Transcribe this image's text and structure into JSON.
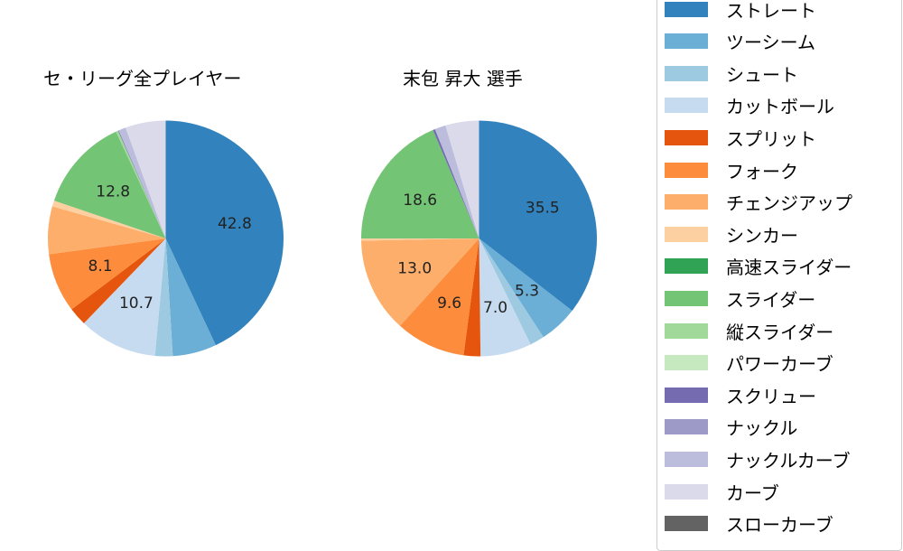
{
  "chart_data": [
    {
      "type": "pie",
      "title": "セ・リーグ全プレイヤー",
      "categories": [
        "ストレート",
        "ツーシーム",
        "シュート",
        "カットボール",
        "スプリット",
        "フォーク",
        "チェンジアップ",
        "シンカー",
        "高速スライダー",
        "スライダー",
        "縦スライダー",
        "パワーカーブ",
        "スクリュー",
        "ナックル",
        "ナックルカーブ",
        "カーブ",
        "スローカーブ"
      ],
      "values": [
        42.8,
        6.0,
        2.4,
        10.7,
        2.5,
        8.1,
        6.5,
        0.8,
        0.0,
        12.8,
        0.3,
        0.0,
        0.1,
        0.0,
        1.0,
        5.5,
        0.0
      ],
      "labels_shown": {
        "ストレート": "42.8",
        "カットボール": "10.7",
        "フォーク": "8.1",
        "スライダー": "12.8"
      },
      "start_angle": 90,
      "direction": "clockwise"
    },
    {
      "type": "pie",
      "title": "末包 昇大  選手",
      "categories": [
        "ストレート",
        "ツーシーム",
        "シュート",
        "カットボール",
        "スプリット",
        "フォーク",
        "チェンジアップ",
        "シンカー",
        "高速スライダー",
        "スライダー",
        "縦スライダー",
        "パワーカーブ",
        "スクリュー",
        "ナックル",
        "ナックルカーブ",
        "カーブ",
        "スローカーブ"
      ],
      "values": [
        35.5,
        5.3,
        2.0,
        7.0,
        2.3,
        9.6,
        13.0,
        0.3,
        0.0,
        18.6,
        0.0,
        0.0,
        0.3,
        0.0,
        1.5,
        4.6,
        0.0
      ],
      "labels_shown": {
        "ストレート": "35.5",
        "ツーシーム": "5.3",
        "カットボール": "7.0",
        "フォーク": "9.6",
        "チェンジアップ": "13.0",
        "スライダー": "18.6"
      },
      "start_angle": 90,
      "direction": "clockwise"
    }
  ],
  "titles": {
    "left": "セ・リーグ全プレイヤー",
    "right": "末包 昇大  選手"
  },
  "legend": [
    {
      "label": "ストレート",
      "color": "#3182bd"
    },
    {
      "label": "ツーシーム",
      "color": "#6baed6"
    },
    {
      "label": "シュート",
      "color": "#9ecae1"
    },
    {
      "label": "カットボール",
      "color": "#c6dbef"
    },
    {
      "label": "スプリット",
      "color": "#e6550d"
    },
    {
      "label": "フォーク",
      "color": "#fd8d3c"
    },
    {
      "label": "チェンジアップ",
      "color": "#fdae6b"
    },
    {
      "label": "シンカー",
      "color": "#fdd0a2"
    },
    {
      "label": "高速スライダー",
      "color": "#31a354"
    },
    {
      "label": "スライダー",
      "color": "#74c476"
    },
    {
      "label": "縦スライダー",
      "color": "#a1d99b"
    },
    {
      "label": "パワーカーブ",
      "color": "#c7e9c0"
    },
    {
      "label": "スクリュー",
      "color": "#756bb1"
    },
    {
      "label": "ナックル",
      "color": "#9e9ac8"
    },
    {
      "label": "ナックルカーブ",
      "color": "#bcbddc"
    },
    {
      "label": "カーブ",
      "color": "#dadaeb"
    },
    {
      "label": "スローカーブ",
      "color": "#636363"
    }
  ]
}
